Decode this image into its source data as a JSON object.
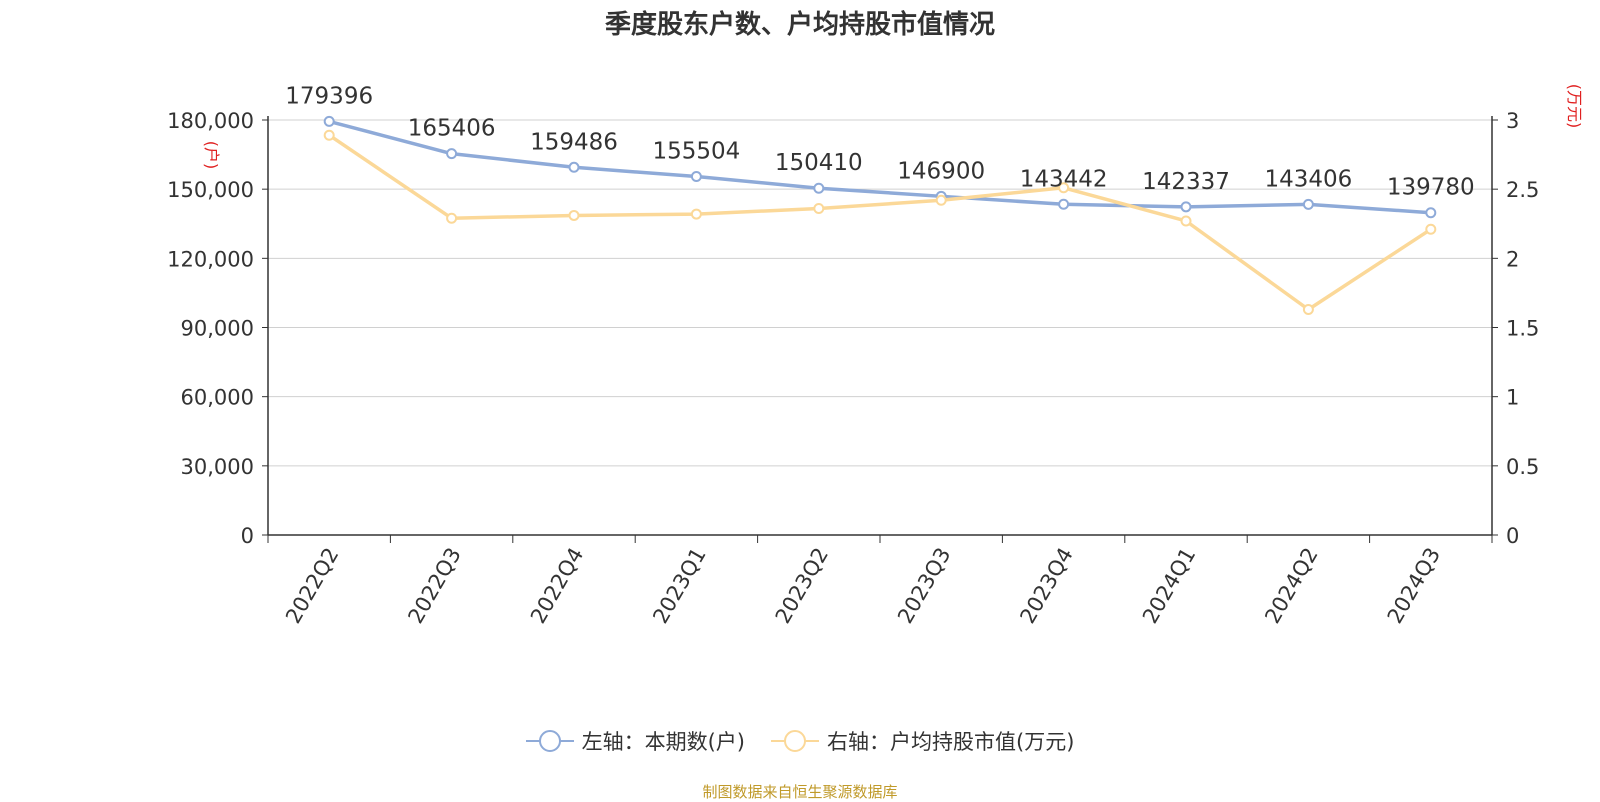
{
  "chart_data": {
    "type": "line",
    "title": "季度股东户数、户均持股市值情况",
    "categories": [
      "2022Q2",
      "2022Q3",
      "2022Q4",
      "2023Q1",
      "2023Q2",
      "2023Q3",
      "2023Q4",
      "2024Q1",
      "2024Q2",
      "2024Q3"
    ],
    "y_left": {
      "unit_label": "(户)",
      "ylim": [
        0,
        180000
      ],
      "ticks": [
        0,
        30000,
        60000,
        90000,
        120000,
        150000,
        180000
      ],
      "tick_labels": [
        "0",
        "30,000",
        "60,000",
        "90,000",
        "120,000",
        "150,000",
        "180,000"
      ]
    },
    "y_right": {
      "unit_label": "(万元)",
      "ylim": [
        0,
        3
      ],
      "ticks": [
        0,
        0.5,
        1,
        1.5,
        2,
        2.5,
        3
      ],
      "tick_labels": [
        "0",
        "0.5",
        "1",
        "1.5",
        "2",
        "2.5",
        "3"
      ]
    },
    "series": [
      {
        "name": "左轴：本期数(户)",
        "axis": "left",
        "color": "#8eaad8",
        "values": [
          179396,
          165406,
          159486,
          155504,
          150410,
          146900,
          143442,
          142337,
          143406,
          139780
        ],
        "data_labels": [
          "179396",
          "165406",
          "159486",
          "155504",
          "150410",
          "146900",
          "143442",
          "142337",
          "143406",
          "139780"
        ]
      },
      {
        "name": "右轴：户均持股市值(万元)",
        "axis": "right",
        "color": "#fbd898",
        "values": [
          2.89,
          2.29,
          2.31,
          2.32,
          2.36,
          2.42,
          2.51,
          2.27,
          1.63,
          2.21
        ]
      }
    ],
    "grid": true,
    "legend_position": "bottom"
  },
  "colors": {
    "axis_unit_label": "#e02020",
    "grid": "#d0d0d0",
    "axis": "#333333",
    "text": "#333333",
    "source": "#c09a2a"
  },
  "footer": {
    "source": "制图数据来自恒生聚源数据库"
  }
}
